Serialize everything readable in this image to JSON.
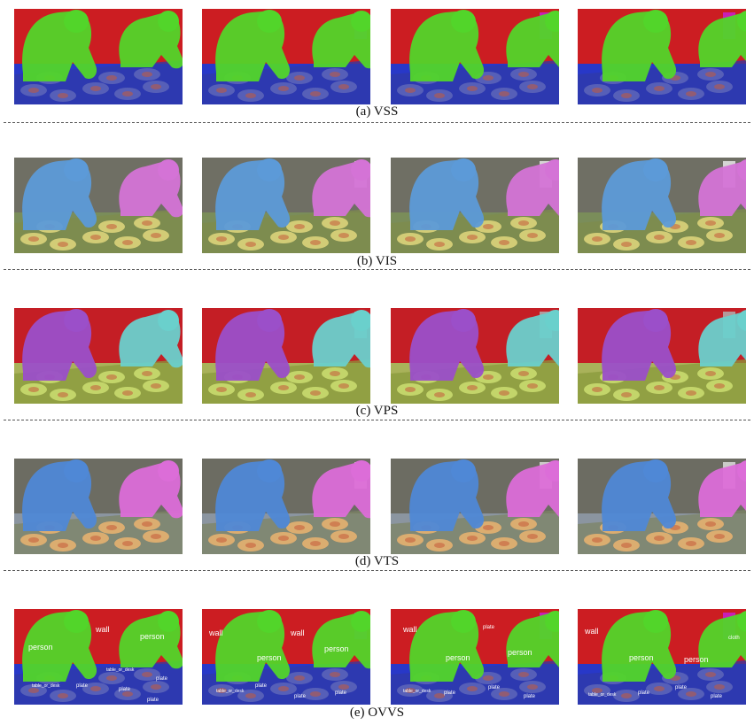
{
  "figure": {
    "rows": [
      {
        "id": "vss",
        "caption": "(a) VSS",
        "palette": {
          "background": "#cc1d22",
          "floor": "#2f3aa8",
          "person_a": "#52d52a",
          "person_b": "#52d52a",
          "plate": "#5a63b8",
          "table": "#2838c8",
          "extra": "#c81fd0"
        },
        "labels": []
      },
      {
        "id": "vis",
        "caption": "(b) VIS",
        "palette": {
          "background": "#6f6f64",
          "floor": "#7f8c4c",
          "person_a": "#5c9ad8",
          "person_b": "#d473d6",
          "plate": "#d9d17a",
          "table": "#7a8d5a",
          "extra": "#e8e8e8"
        },
        "labels": []
      },
      {
        "id": "vps",
        "caption": "(c) VPS",
        "palette": {
          "background": "#c41e25",
          "floor": "#8a9a3c",
          "person_a": "#9b4fc9",
          "person_b": "#6ad0cc",
          "plate": "#c8d96e",
          "table": "#a9b25a",
          "extra": "#b0b0b0"
        },
        "labels": []
      },
      {
        "id": "vts",
        "caption": "(d) VTS",
        "palette": {
          "background": "#6c6c62",
          "floor": "#7c8466",
          "person_a": "#4f88d6",
          "person_b": "#dc6dd8",
          "plate": "#e3b070",
          "table": "#8b95a0",
          "extra": "#dcdcdc"
        },
        "labels": []
      },
      {
        "id": "ovvs",
        "caption": "(e) OVVS",
        "palette": {
          "background": "#cc1d22",
          "floor": "#2f3aa8",
          "person_a": "#52d52a",
          "person_b": "#52d52a",
          "plate": "#5a63b8",
          "table": "#2838c8",
          "extra": "#c81fd0"
        },
        "labels": [
          [
            "person",
            "wall",
            "person",
            "table_or_desk",
            "plate",
            "table_or_desk",
            "plate",
            "plate",
            "plate"
          ],
          [
            "wall",
            "person",
            "person",
            "wall",
            "table_or_desk",
            "plate",
            "plate",
            "plate"
          ],
          [
            "wall",
            "person",
            "person",
            "plate",
            "table_or_desk",
            "plate",
            "plate",
            "plate"
          ],
          [
            "wall",
            "person",
            "person",
            "cloth",
            "table_or_desk",
            "plate",
            "plate",
            "plate"
          ]
        ]
      }
    ]
  }
}
